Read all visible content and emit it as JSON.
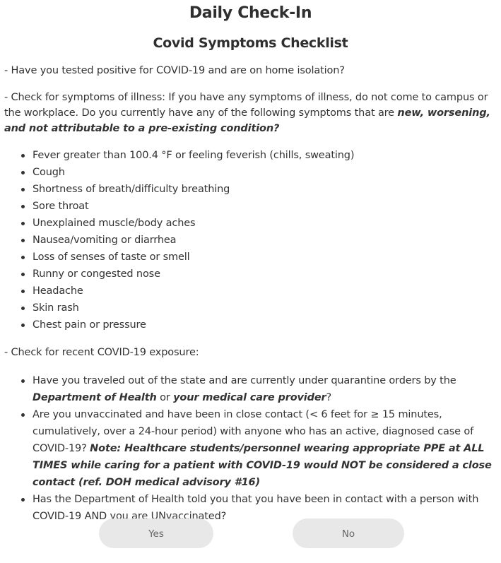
{
  "header": {
    "title": "Daily Check-In",
    "subtitle": "Covid Symptoms Checklist"
  },
  "questions": {
    "home_isolation": "- Have you tested positive for COVID-19 and are on home isolation?",
    "symptoms_intro": "- Check for symptoms of illness: If you have any symptoms of illness, do not come to campus or the workplace. Do you currently have any of the following symptoms that are ",
    "symptoms_intro_emphasis": "new, worsening, and not attributable to a pre-existing condition?",
    "exposure_intro": "- Check for recent COVID-19 exposure:"
  },
  "symptoms": [
    "Fever greater than 100.4 °F or feeling feverish (chills, sweating)",
    "Cough",
    "Shortness of breath/difficulty breathing",
    "Sore throat",
    "Unexplained muscle/body aches",
    "Nausea/vomiting or diarrhea",
    "Loss of senses of taste or smell",
    "Runny or congested nose",
    "Headache",
    "Skin rash",
    "Chest pain or pressure"
  ],
  "exposure": {
    "travel_part1": "Have you traveled out of the state and are currently under quarantine orders by the ",
    "travel_doh": "Department of Health",
    "travel_or": " or ",
    "travel_provider": "your medical care provider",
    "travel_end": "?",
    "contact_text": "Are you unvaccinated and have been in close contact (< 6 feet for ≥ 15 minutes, cumulatively, over a 24-hour period) with anyone who has an active, diagnosed case of COVID-19? ",
    "contact_note": "Note: Healthcare students/personnel wearing appropriate PPE at ALL TIMES while caring for a patient with COVID-19 would NOT be considered a close contact (ref. DOH medical advisory #16)",
    "doh_text": "Has the Department of Health told you that you have been in contact with a person with COVID-19 AND you are UNvaccinated?"
  },
  "buttons": {
    "yes_label": "Yes",
    "no_label": "No"
  },
  "colors": {
    "text": "#333333",
    "button_bg": "#e8e8e8",
    "button_text": "#666666"
  }
}
